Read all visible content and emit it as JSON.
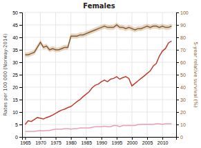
{
  "chart_data": {
    "type": "line",
    "title": "Females",
    "ylabel": "Rates per 100 000 (Norway-2014)",
    "y2label": "5-year relative survival (%)",
    "grid": true,
    "x": [
      1965,
      1966,
      1967,
      1968,
      1969,
      1970,
      1971,
      1972,
      1973,
      1974,
      1975,
      1976,
      1977,
      1978,
      1979,
      1980,
      1981,
      1982,
      1983,
      1984,
      1985,
      1986,
      1987,
      1988,
      1989,
      1990,
      1991,
      1992,
      1993,
      1994,
      1995,
      1996,
      1997,
      1998,
      1999,
      2000,
      2001,
      2002,
      2003,
      2004,
      2005,
      2006,
      2007,
      2008,
      2009,
      2010,
      2011,
      2012,
      2013
    ],
    "xlim": [
      1964,
      2014.5
    ],
    "xticks": [
      1965,
      1970,
      1975,
      1980,
      1985,
      1990,
      1995,
      2000,
      2005,
      2010
    ],
    "ylim": [
      0,
      50
    ],
    "yticks": [
      0,
      5,
      10,
      15,
      20,
      25,
      30,
      35,
      40,
      45,
      50
    ],
    "y2lim": [
      0,
      100
    ],
    "y2ticks": [
      0,
      10,
      20,
      30,
      40,
      50,
      60,
      70,
      80,
      90,
      100
    ],
    "series": [
      {
        "color": "#c0392b",
        "values": [
          5.0,
          6.5,
          6.2,
          7.0,
          7.8,
          7.5,
          7.2,
          7.8,
          8.2,
          8.8,
          9.5,
          10.2,
          10.8,
          11.2,
          11.8,
          12.2,
          13.2,
          14.2,
          15.0,
          16.2,
          17.2,
          18.2,
          19.8,
          20.8,
          21.2,
          22.2,
          22.8,
          22.2,
          23.2,
          23.5,
          24.2,
          23.2,
          23.8,
          24.2,
          23.5,
          20.5,
          21.5,
          22.5,
          23.5,
          24.5,
          25.5,
          26.5,
          28.5,
          29.5,
          32.5,
          34.5,
          35.5,
          37.8,
          38.5
        ]
      },
      {
        "color": "#e8a0b0",
        "values": [
          2.2,
          2.2,
          2.2,
          2.2,
          2.4,
          2.6,
          2.4,
          2.6,
          2.6,
          2.9,
          3.1,
          3.1,
          3.1,
          3.3,
          3.3,
          3.1,
          3.3,
          3.3,
          3.6,
          3.6,
          3.6,
          3.6,
          3.9,
          4.1,
          4.1,
          4.1,
          4.3,
          4.1,
          4.1,
          4.6,
          4.6,
          4.1,
          4.6,
          4.6,
          4.6,
          4.6,
          4.6,
          4.9,
          5.1,
          5.1,
          5.1,
          5.1,
          5.1,
          5.3,
          5.3,
          5.1,
          5.3,
          5.3,
          5.3
        ]
      },
      {
        "color": "#8B5A2B",
        "axis": "y2",
        "values": [
          66,
          66,
          67,
          68,
          72,
          76,
          72,
          73,
          70,
          71,
          70,
          70,
          71,
          72,
          72,
          81,
          81,
          81,
          82,
          82,
          83,
          84,
          85,
          86,
          87,
          88,
          89,
          88,
          88,
          88,
          90,
          88,
          88,
          87,
          88,
          87,
          86,
          87,
          87,
          88,
          89,
          88,
          89,
          89,
          88,
          89,
          88,
          88,
          89
        ],
        "band": {
          "color": "#c8a882",
          "lower": [
            64,
            64,
            65,
            66,
            70,
            74,
            70,
            71,
            68,
            69,
            68,
            68,
            69,
            70,
            70,
            79,
            79,
            79,
            80,
            80,
            81,
            82,
            83,
            84,
            85,
            86,
            87,
            86,
            86,
            86,
            88,
            86,
            86,
            85,
            86,
            85,
            84,
            85,
            85,
            86,
            87,
            86,
            87,
            87,
            86,
            87,
            86,
            86,
            87
          ],
          "upper": [
            68,
            68,
            69,
            70,
            74,
            78,
            74,
            75,
            72,
            73,
            72,
            72,
            73,
            74,
            74,
            83,
            83,
            83,
            84,
            84,
            85,
            86,
            87,
            88,
            89,
            90,
            91,
            90,
            90,
            90,
            92,
            90,
            90,
            89,
            90,
            89,
            88,
            89,
            89,
            90,
            91,
            90,
            91,
            91,
            90,
            91,
            90,
            90,
            91
          ]
        }
      }
    ]
  }
}
